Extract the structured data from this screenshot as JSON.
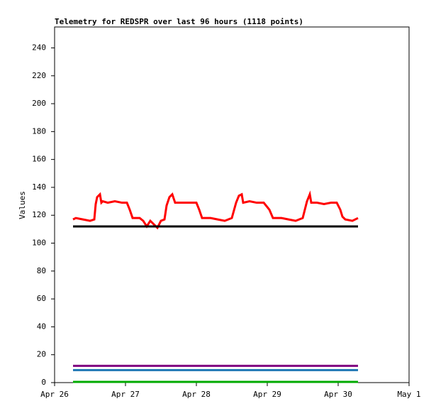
{
  "chart_data": {
    "type": "line",
    "title": "Telemetry for REDSPR over last 96 hours (1118 points)",
    "y_label": "Values",
    "xlim": [
      0,
      5
    ],
    "xticks": [
      {
        "value": 0,
        "label": "Apr 26"
      },
      {
        "value": 1,
        "label": "Apr 27"
      },
      {
        "value": 2,
        "label": "Apr 28"
      },
      {
        "value": 3,
        "label": "Apr 29"
      },
      {
        "value": 4,
        "label": "Apr 30"
      },
      {
        "value": 5,
        "label": "May 1"
      }
    ],
    "ylim": [
      0,
      255
    ],
    "yticks": [
      0,
      20,
      40,
      60,
      80,
      100,
      120,
      140,
      160,
      180,
      200,
      220,
      240
    ],
    "series": [
      {
        "color": "#ff0000",
        "x": [
          0.26,
          0.3,
          0.4,
          0.5,
          0.56,
          0.58,
          0.6,
          0.64,
          0.66,
          0.68,
          0.75,
          0.85,
          0.95,
          1.02,
          1.06,
          1.1,
          1.2,
          1.25,
          1.3,
          1.35,
          1.45,
          1.5,
          1.55,
          1.58,
          1.62,
          1.66,
          1.7,
          1.8,
          1.9,
          2.0,
          2.04,
          2.08,
          2.2,
          2.3,
          2.4,
          2.45,
          2.5,
          2.56,
          2.6,
          2.64,
          2.66,
          2.75,
          2.85,
          2.95,
          3.03,
          3.08,
          3.2,
          3.3,
          3.4,
          3.45,
          3.5,
          3.56,
          3.6,
          3.62,
          3.7,
          3.8,
          3.9,
          3.98,
          4.03,
          4.06,
          4.1,
          4.2,
          4.28
        ],
        "values": [
          117,
          118,
          117,
          116,
          117,
          128,
          133,
          135,
          129,
          130,
          129,
          130,
          129,
          129,
          124,
          118,
          118,
          116,
          112,
          116,
          111,
          116,
          117,
          127,
          133,
          135,
          129,
          129,
          129,
          129,
          124,
          118,
          118,
          117,
          116,
          117,
          118,
          129,
          134,
          135,
          129,
          130,
          129,
          129,
          124,
          118,
          118,
          117,
          116,
          117,
          118,
          130,
          135,
          129,
          129,
          128,
          129,
          129,
          124,
          119,
          117,
          116,
          118
        ]
      },
      {
        "color": "#000000",
        "x": [
          0.26,
          1.0,
          2.0,
          3.0,
          4.28
        ],
        "values": [
          112,
          112,
          112,
          112,
          112
        ]
      },
      {
        "color": "#800080",
        "x": [
          0.26,
          1.0,
          2.0,
          3.0,
          4.28
        ],
        "values": [
          12,
          12,
          12,
          12,
          12
        ]
      },
      {
        "color": "#1f77b4",
        "x": [
          0.26,
          1.0,
          2.0,
          3.0,
          4.28
        ],
        "values": [
          9,
          9,
          9,
          9,
          9
        ]
      },
      {
        "color": "#00aa00",
        "x": [
          0.26,
          1.0,
          2.0,
          3.0,
          4.28
        ],
        "values": [
          0.5,
          0.5,
          0.5,
          0.5,
          0.5
        ]
      }
    ]
  }
}
